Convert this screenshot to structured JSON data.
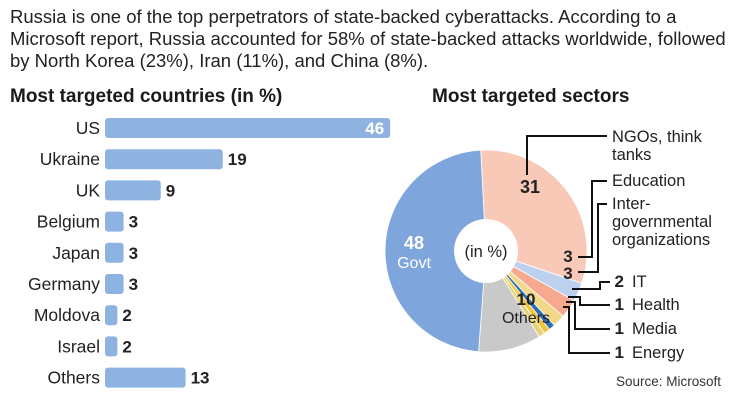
{
  "intro_text": "Russia is one of the top perpetrators of state-backed cyberattacks. According to a Microsoft report, Russia accounted for 58% of state-backed attacks worldwide, followed by North Korea (23%), Iran (11%), and China (8%).",
  "source": "Source: Microsoft",
  "colors": {
    "bar": "#8fb3e0",
    "govt": "#7fa6dc",
    "ngo": "#f9c9b8",
    "education": "#bcd1ee",
    "intergov": "#f6a98e",
    "it": "#f2d98a",
    "health": "#2d6fb0",
    "media": "#f0c43a",
    "energy": "#e8d27a",
    "others": "#c9c9c9"
  },
  "chart_data": [
    {
      "type": "bar",
      "title": "Most targeted countries (in %)",
      "categories": [
        "US",
        "Ukraine",
        "UK",
        "Belgium",
        "Japan",
        "Germany",
        "Moldova",
        "Israel",
        "Others"
      ],
      "values": [
        46,
        19,
        9,
        3,
        3,
        3,
        2,
        2,
        13
      ]
    },
    {
      "type": "pie",
      "title": "Most targeted sectors",
      "center_label": "(in %)",
      "slices": [
        {
          "label": "NGOs, think tanks",
          "value": 31
        },
        {
          "label": "Education",
          "value": 3
        },
        {
          "label": "Inter-governmental organizations",
          "value": 3
        },
        {
          "label": "IT",
          "value": 2
        },
        {
          "label": "Health",
          "value": 1
        },
        {
          "label": "Media",
          "value": 1
        },
        {
          "label": "Energy",
          "value": 1
        },
        {
          "label": "Others",
          "value": 10
        },
        {
          "label": "Govt",
          "value": 48
        }
      ]
    }
  ]
}
